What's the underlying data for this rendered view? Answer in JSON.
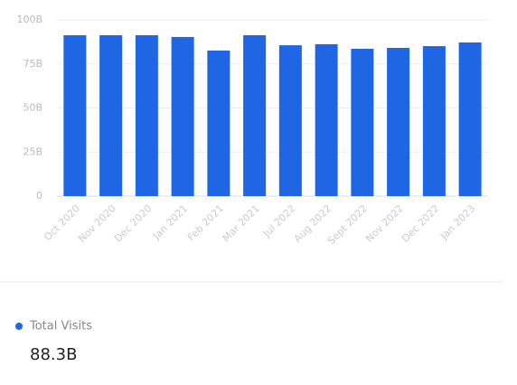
{
  "chart_data": {
    "type": "bar",
    "categories": [
      "Oct 2020",
      "Nov 2020",
      "Dec 2020",
      "Jan 2021",
      "Feb 2021",
      "Mar 2021",
      "Jul 2022",
      "Aug 2022",
      "Sept 2022",
      "Nov 2022",
      "Dec 2022",
      "Jan 2023"
    ],
    "series": [
      {
        "name": "Total Visits",
        "color": "#1f66e5",
        "values": [
          91.3,
          91.3,
          91.3,
          90.3,
          82.6,
          91.3,
          85.6,
          86.2,
          83.6,
          84.1,
          85.1,
          87.2
        ]
      }
    ],
    "ylim": [
      0,
      100
    ],
    "yticks": [
      0,
      {
        "value": 25,
        "label": "25B"
      },
      {
        "value": 50,
        "label": "50B"
      },
      {
        "value": 75,
        "label": "75B"
      },
      {
        "value": 100,
        "label": "100B"
      }
    ],
    "grid": true,
    "summary": "88.3B"
  }
}
